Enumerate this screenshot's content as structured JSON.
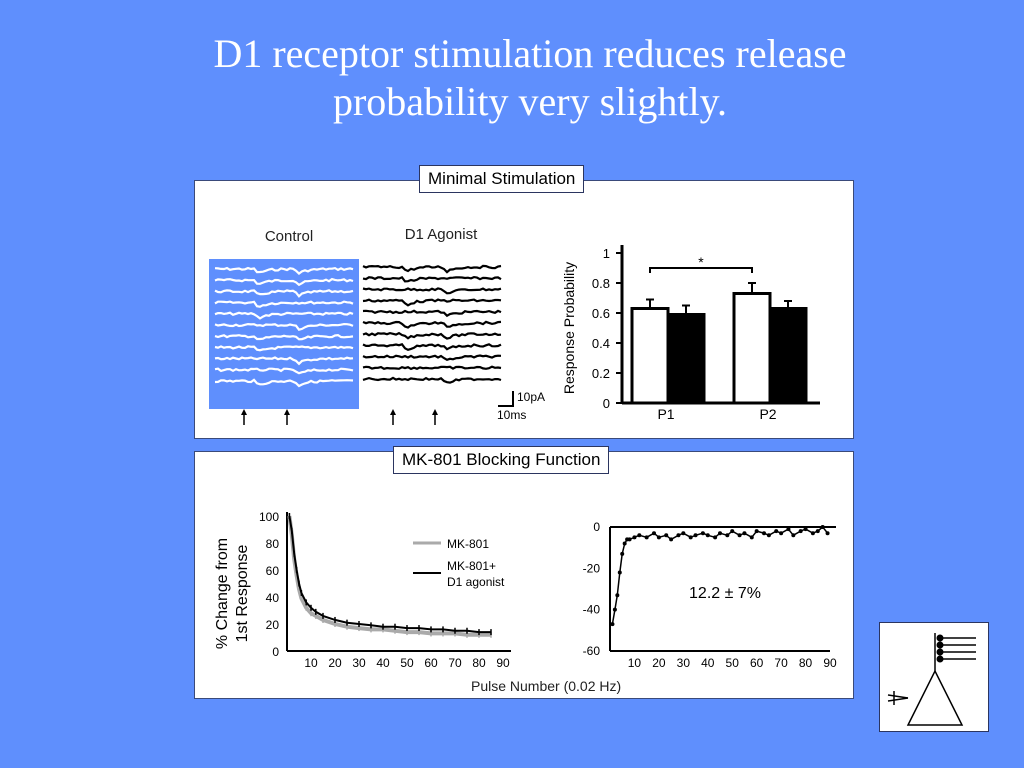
{
  "slide": {
    "title_line1": "D1 receptor stimulation reduces release",
    "title_line2": "probability very slightly."
  },
  "panel_top": {
    "label": "Minimal Stimulation",
    "traces": {
      "control_label": "Control",
      "agonist_label": "D1 Agonist",
      "scale_current": "10pA",
      "scale_time": "10ms"
    }
  },
  "panel_bottom": {
    "label": "MK-801 Blocking Function",
    "annotation": "12.2 ± 7%",
    "shared_xlabel": "Pulse Number (0.02 Hz)"
  },
  "colors": {
    "background": "#5f8ffd",
    "panel": "#ffffff",
    "control_trace": "#ffffff",
    "agonist_trace": "#000000",
    "mk801_series": "#aaaaaa"
  },
  "chart_data": [
    {
      "type": "bar",
      "title": "",
      "ylabel": "Response Probability",
      "xlabel": "",
      "categories": [
        "P1",
        "P2"
      ],
      "series": [
        {
          "name": "",
          "color": "#ffffff",
          "values": [
            0.63,
            0.73
          ],
          "errors": [
            0.06,
            0.07
          ]
        },
        {
          "name": "",
          "color": "#000000",
          "values": [
            0.59,
            0.63
          ],
          "errors": [
            0.06,
            0.05
          ]
        }
      ],
      "ylim": [
        0,
        1
      ],
      "yticks": [
        "0",
        "0.2",
        "0.4",
        "0.6",
        "0.8",
        "1"
      ],
      "significance": "*",
      "grid": false
    },
    {
      "type": "line",
      "title": "",
      "xlabel": "",
      "ylabel": "% Change from\n1st Response",
      "ylabel_line1": "% Change from",
      "ylabel_line2": "1st Response",
      "xlim": [
        0,
        90
      ],
      "ylim": [
        0,
        100
      ],
      "xticks": [
        "10",
        "20",
        "30",
        "40",
        "50",
        "60",
        "70",
        "80",
        "90"
      ],
      "yticks": [
        "0",
        "20",
        "40",
        "60",
        "80",
        "100"
      ],
      "legend": "top-right",
      "series": [
        {
          "name": "MK-801",
          "color": "#aaaaaa",
          "x": [
            1,
            2,
            3,
            4,
            5,
            6,
            8,
            10,
            12,
            15,
            20,
            25,
            30,
            35,
            40,
            45,
            50,
            55,
            60,
            65,
            70,
            75,
            80,
            85
          ],
          "y": [
            100,
            86,
            68,
            56,
            46,
            39,
            32,
            28,
            26,
            23,
            20,
            18,
            17,
            16,
            16,
            15,
            14,
            14,
            13,
            13,
            13,
            12,
            12,
            12
          ]
        },
        {
          "name": "MK-801+\nD1 agonist",
          "name_line1": "MK-801+",
          "name_line2": "D1 agonist",
          "color": "#000000",
          "x": [
            1,
            2,
            3,
            4,
            5,
            6,
            8,
            10,
            12,
            15,
            20,
            25,
            30,
            35,
            40,
            45,
            50,
            55,
            60,
            65,
            70,
            75,
            80,
            85
          ],
          "y": [
            100,
            89,
            72,
            60,
            50,
            43,
            36,
            32,
            29,
            26,
            23,
            21,
            20,
            19,
            18,
            18,
            17,
            17,
            16,
            16,
            15,
            15,
            14,
            14
          ]
        }
      ],
      "grid": false
    },
    {
      "type": "line",
      "title": "",
      "xlabel": "",
      "ylabel": "",
      "xlim": [
        0,
        90
      ],
      "ylim": [
        -60,
        0
      ],
      "xticks": [
        "10",
        "20",
        "30",
        "40",
        "50",
        "60",
        "70",
        "80",
        "90"
      ],
      "yticks": [
        "0",
        "-20",
        "-40",
        "-60"
      ],
      "series": [
        {
          "name": "",
          "color": "#000000",
          "x": [
            1,
            2,
            3,
            4,
            5,
            6,
            7,
            8,
            10,
            12,
            15,
            18,
            20,
            23,
            25,
            28,
            30,
            33,
            35,
            38,
            40,
            43,
            45,
            48,
            50,
            53,
            55,
            58,
            60,
            63,
            65,
            68,
            70,
            73,
            75,
            78,
            80,
            83,
            85,
            87,
            89
          ],
          "y": [
            -47,
            -40,
            -33,
            -22,
            -13,
            -8,
            -6,
            -6,
            -5,
            -4,
            -5,
            -3,
            -5,
            -4,
            -6,
            -4,
            -3,
            -5,
            -4,
            -3,
            -4,
            -5,
            -3,
            -4,
            -2,
            -4,
            -3,
            -5,
            -2,
            -3,
            -4,
            -2,
            -3,
            -1,
            -4,
            -2,
            -1,
            -3,
            -2,
            0,
            -3
          ]
        }
      ],
      "grid": false
    }
  ]
}
